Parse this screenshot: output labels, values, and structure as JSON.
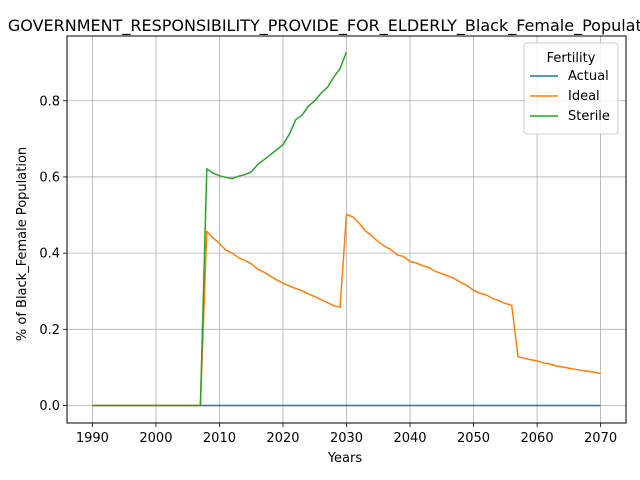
{
  "chart_data": {
    "type": "line",
    "title": "GOVERNMENT_RESPONSIBILITY_PROVIDE_FOR_ELDERLY_Black_Female_Population",
    "xlabel": "Years",
    "ylabel": "% of Black_Female Population",
    "xlim": [
      1986,
      2074
    ],
    "ylim": [
      -0.046,
      0.97
    ],
    "xticks": [
      1990,
      2000,
      2010,
      2020,
      2030,
      2040,
      2050,
      2060,
      2070
    ],
    "yticks": [
      0.0,
      0.2,
      0.4,
      0.6,
      0.8
    ],
    "xtick_labels": [
      "1990",
      "2000",
      "2010",
      "2020",
      "2030",
      "2040",
      "2050",
      "2060",
      "2070"
    ],
    "ytick_labels": [
      "0.0",
      "0.2",
      "0.4",
      "0.6",
      "0.8"
    ],
    "grid": true,
    "legend": {
      "title": "Fertility",
      "placement": "top-right"
    },
    "series": [
      {
        "name": "Actual",
        "color": "#1f77b4",
        "x": [
          1990,
          2070
        ],
        "y": [
          0.0,
          0.0
        ]
      },
      {
        "name": "Ideal",
        "color": "#ff7f0e",
        "x": [
          1990,
          2007,
          2008,
          2009,
          2010,
          2011,
          2012,
          2013,
          2014,
          2015,
          2016,
          2017,
          2018,
          2019,
          2020,
          2021,
          2022,
          2023,
          2024,
          2025,
          2026,
          2027,
          2028,
          2029,
          2030,
          2031,
          2032,
          2033,
          2034,
          2035,
          2036,
          2037,
          2038,
          2039,
          2040,
          2041,
          2042,
          2043,
          2044,
          2045,
          2046,
          2047,
          2048,
          2049,
          2050,
          2051,
          2052,
          2053,
          2054,
          2055,
          2056,
          2057,
          2058,
          2059,
          2060,
          2061,
          2062,
          2063,
          2064,
          2065,
          2066,
          2067,
          2068,
          2069,
          2070
        ],
        "y": [
          0.0,
          0.0,
          0.457,
          0.44,
          0.425,
          0.408,
          0.4,
          0.388,
          0.381,
          0.372,
          0.358,
          0.35,
          0.34,
          0.33,
          0.321,
          0.314,
          0.307,
          0.301,
          0.293,
          0.286,
          0.278,
          0.27,
          0.262,
          0.258,
          0.502,
          0.495,
          0.478,
          0.458,
          0.445,
          0.43,
          0.418,
          0.409,
          0.395,
          0.391,
          0.378,
          0.374,
          0.367,
          0.362,
          0.352,
          0.346,
          0.34,
          0.333,
          0.323,
          0.315,
          0.302,
          0.295,
          0.29,
          0.281,
          0.275,
          0.268,
          0.263,
          0.128,
          0.124,
          0.12,
          0.117,
          0.112,
          0.109,
          0.104,
          0.101,
          0.098,
          0.095,
          0.092,
          0.09,
          0.087,
          0.084
        ]
      },
      {
        "name": "Sterile",
        "color": "#2ca02c",
        "x": [
          1990,
          2007,
          2008,
          2009,
          2010,
          2011,
          2012,
          2013,
          2014,
          2015,
          2016,
          2017,
          2018,
          2019,
          2020,
          2021,
          2022,
          2023,
          2024,
          2025,
          2026,
          2027,
          2028,
          2029,
          2030
        ],
        "y": [
          0.0,
          0.0,
          0.621,
          0.61,
          0.603,
          0.599,
          0.596,
          0.602,
          0.606,
          0.613,
          0.632,
          0.645,
          0.658,
          0.671,
          0.685,
          0.712,
          0.75,
          0.762,
          0.786,
          0.8,
          0.82,
          0.835,
          0.862,
          0.885,
          0.928
        ]
      }
    ]
  }
}
